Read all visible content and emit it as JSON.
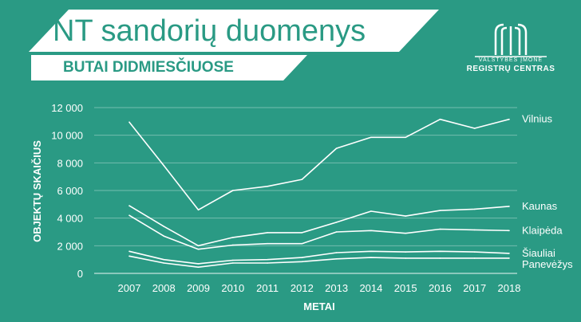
{
  "header": {
    "title": "NT sandorių duomenys",
    "subtitle": "BUTAI DIDMIESČIUOSE"
  },
  "logo": {
    "line1": "VALSTYBĖS ĮMONĖ",
    "line2": "REGISTRŲ CENTRAS"
  },
  "colors": {
    "background": "#2a9a84",
    "foreground": "#ffffff"
  },
  "chart_data": {
    "type": "line",
    "title": "",
    "xlabel": "METAI",
    "ylabel": "OBJEKTŲ SKAIČIUS",
    "x": [
      "2007",
      "2008",
      "2009",
      "2010",
      "2011",
      "2012",
      "2013",
      "2014",
      "2015",
      "2016",
      "2017",
      "2018"
    ],
    "ylim": [
      0,
      12000
    ],
    "yticks": [
      0,
      2000,
      4000,
      6000,
      8000,
      10000,
      12000
    ],
    "ytick_labels": [
      "0",
      "2 000",
      "4 000",
      "6 000",
      "8 000",
      "10 000",
      "12 000"
    ],
    "grid": "horizontal",
    "series": [
      {
        "name": "Vilnius",
        "values": [
          10950,
          7800,
          4600,
          6000,
          6300,
          6800,
          9050,
          9850,
          9850,
          11150,
          10500,
          11150
        ]
      },
      {
        "name": "Kaunas",
        "values": [
          4900,
          3400,
          2000,
          2600,
          2950,
          2950,
          3700,
          4500,
          4150,
          4550,
          4650,
          4850
        ]
      },
      {
        "name": "Klaipėda",
        "values": [
          4200,
          2700,
          1750,
          2050,
          2150,
          2150,
          3000,
          3100,
          2900,
          3200,
          3150,
          3100
        ]
      },
      {
        "name": "Šiauliai",
        "values": [
          1600,
          1000,
          700,
          950,
          1000,
          1150,
          1500,
          1600,
          1550,
          1600,
          1550,
          1450
        ]
      },
      {
        "name": "Panevėžys",
        "values": [
          1250,
          750,
          450,
          750,
          750,
          850,
          1050,
          1150,
          1100,
          1100,
          1100,
          1100
        ]
      }
    ]
  }
}
